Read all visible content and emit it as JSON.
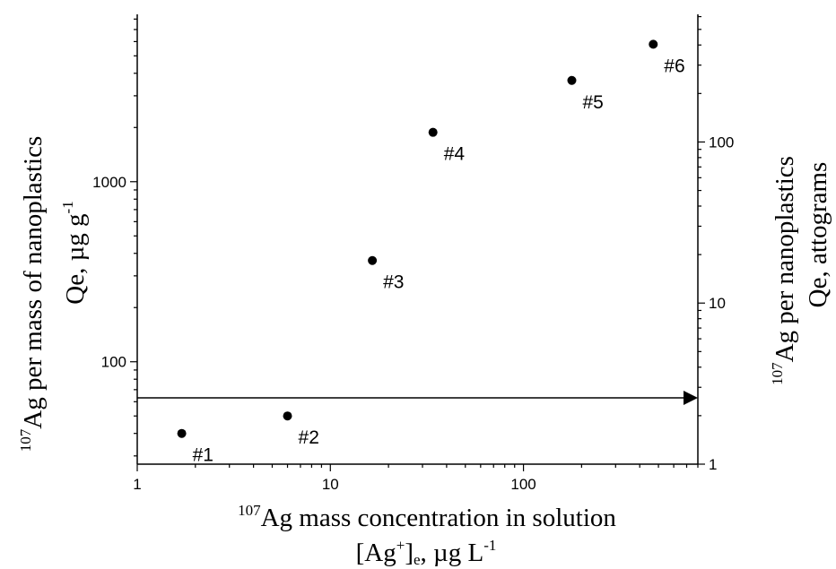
{
  "chart_data": {
    "type": "scatter",
    "title": "",
    "x_scale": "log",
    "y_scale": "log",
    "y2_scale": "log",
    "xlim": [
      1,
      800
    ],
    "ylim": [
      27,
      8500
    ],
    "y2lim": [
      1,
      620
    ],
    "x_ticks": [
      {
        "value": 1,
        "label": "1"
      },
      {
        "value": 10,
        "label": "10"
      },
      {
        "value": 100,
        "label": "100"
      }
    ],
    "y_ticks": [
      {
        "value": 100,
        "label": "100"
      },
      {
        "value": 1000,
        "label": "1000"
      }
    ],
    "y2_ticks": [
      {
        "value": 1,
        "label": "1"
      },
      {
        "value": 10,
        "label": "10"
      },
      {
        "value": 100,
        "label": "100"
      }
    ],
    "xlabel": {
      "line1_sup": "107",
      "line1": "Ag mass concentration in solution",
      "line2_a": "[Ag",
      "line2_sup": "+",
      "line2_b": "]",
      "line2_sub": "e",
      "line2_c": ", µg L",
      "line2_sup2": "-1"
    },
    "ylabel": {
      "line1_sup": "107",
      "line1": "Ag per mass of nanoplastics",
      "line2": "Qe,  µg g",
      "line2_sup": "-1"
    },
    "y2label": {
      "line1_sup": "107",
      "line1": "Ag per nanoplastics",
      "line2": "Qe, attograms"
    },
    "points": [
      {
        "label": "#1",
        "x": 1.7,
        "y": 40
      },
      {
        "label": "#2",
        "x": 6.0,
        "y": 50
      },
      {
        "label": "#3",
        "x": 16.5,
        "y": 365
      },
      {
        "label": "#4",
        "x": 34,
        "y": 1880
      },
      {
        "label": "#5",
        "x": 178,
        "y": 3650
      },
      {
        "label": "#6",
        "x": 470,
        "y": 5800
      }
    ],
    "arrow": {
      "direction": "right",
      "y": 63,
      "x_from": 1,
      "x_to": 800
    },
    "grid": false,
    "legend": "none"
  }
}
